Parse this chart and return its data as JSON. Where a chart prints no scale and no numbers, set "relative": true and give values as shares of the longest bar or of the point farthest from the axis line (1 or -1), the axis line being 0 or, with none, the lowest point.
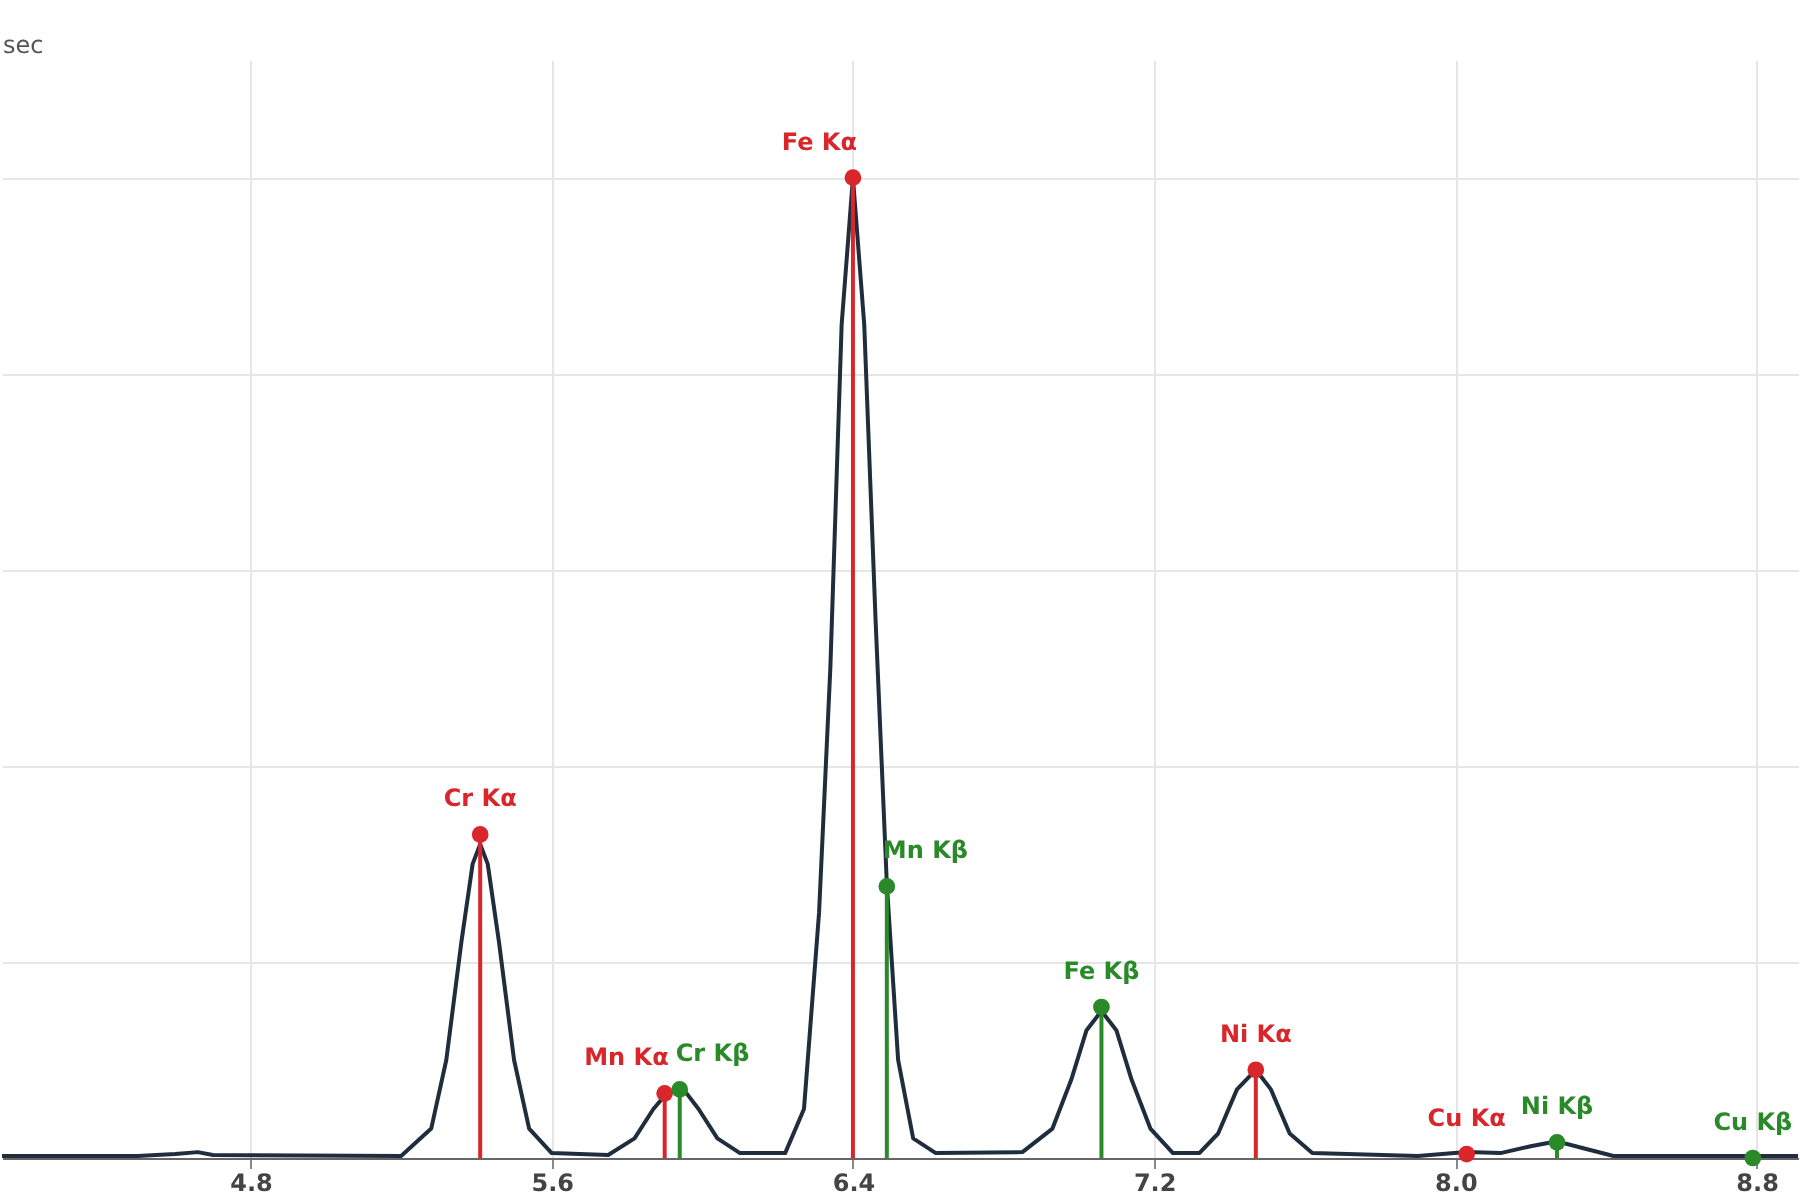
{
  "chart_data": {
    "type": "line",
    "relative": true,
    "ylabel": "sec",
    "xlim": [
      4.14,
      8.91
    ],
    "xticks": [
      {
        "value": 4.8,
        "label": "4.8"
      },
      {
        "value": 5.6,
        "label": "5.6"
      },
      {
        "value": 6.4,
        "label": "6.4"
      },
      {
        "value": 7.2,
        "label": "7.2"
      },
      {
        "value": 8.0,
        "label": "8.0"
      },
      {
        "value": 8.8,
        "label": "8.8"
      }
    ],
    "grid": true,
    "series": [
      {
        "color": "#1f2d3d",
        "x": [
          4.14,
          4.5,
          4.6,
          4.66,
          4.7,
          5.2,
          5.28,
          5.32,
          5.36,
          5.39,
          5.41,
          5.43,
          5.46,
          5.5,
          5.54,
          5.6,
          5.75,
          5.82,
          5.87,
          5.91,
          5.95,
          5.99,
          6.04,
          6.1,
          6.22,
          6.27,
          6.31,
          6.34,
          6.37,
          6.4,
          6.43,
          6.46,
          6.49,
          6.52,
          6.56,
          6.62,
          6.85,
          6.93,
          6.98,
          7.02,
          7.06,
          7.1,
          7.14,
          7.19,
          7.25,
          7.32,
          7.37,
          7.42,
          7.47,
          7.51,
          7.56,
          7.62,
          7.9,
          8.03,
          8.12,
          8.2,
          8.27,
          8.34,
          8.42,
          8.91
        ],
        "values": [
          0.002,
          0.002,
          0.004,
          0.006,
          0.003,
          0.002,
          0.03,
          0.1,
          0.22,
          0.3,
          0.32,
          0.3,
          0.22,
          0.1,
          0.03,
          0.005,
          0.003,
          0.02,
          0.05,
          0.068,
          0.07,
          0.05,
          0.02,
          0.005,
          0.005,
          0.05,
          0.25,
          0.5,
          0.85,
          1.0,
          0.85,
          0.55,
          0.28,
          0.1,
          0.02,
          0.005,
          0.006,
          0.03,
          0.08,
          0.13,
          0.15,
          0.13,
          0.08,
          0.03,
          0.005,
          0.005,
          0.025,
          0.07,
          0.09,
          0.07,
          0.025,
          0.005,
          0.002,
          0.006,
          0.005,
          0.012,
          0.017,
          0.01,
          0.002,
          0.002
        ]
      },
      {
        "type": "lollipop",
        "marker": "circle",
        "color": "#d9262b",
        "x": [
          5.41,
          5.9,
          6.4,
          7.47,
          8.03
        ],
        "values": [
          0.33,
          0.066,
          1.0,
          0.09,
          0.004
        ]
      },
      {
        "type": "lollipop",
        "marker": "circle",
        "color": "#2a8a2a",
        "x": [
          5.94,
          6.49,
          7.06,
          8.27,
          8.79
        ],
        "values": [
          0.07,
          0.277,
          0.154,
          0.016,
          0.0
        ]
      }
    ],
    "annotations": [
      {
        "text": "Cr Kα",
        "x": 5.41,
        "y": 0.33
      },
      {
        "text": "Mn Kα",
        "x": 5.9,
        "y": 0.066
      },
      {
        "text": "Fe Kα",
        "x": 6.4,
        "y": 1.0
      },
      {
        "text": "Ni Kα",
        "x": 7.47,
        "y": 0.09
      },
      {
        "text": "Cu Kα",
        "x": 8.03,
        "y": 0.004
      },
      {
        "text": "Cr Kβ",
        "x": 5.94,
        "y": 0.07
      },
      {
        "text": "Mn Kβ",
        "x": 6.49,
        "y": 0.277
      },
      {
        "text": "Fe Kβ",
        "x": 7.06,
        "y": 0.154
      },
      {
        "text": "Ni Kβ",
        "x": 8.27,
        "y": 0.016
      },
      {
        "text": "Cu Kβ",
        "x": 8.79,
        "y": 0.0
      }
    ]
  }
}
